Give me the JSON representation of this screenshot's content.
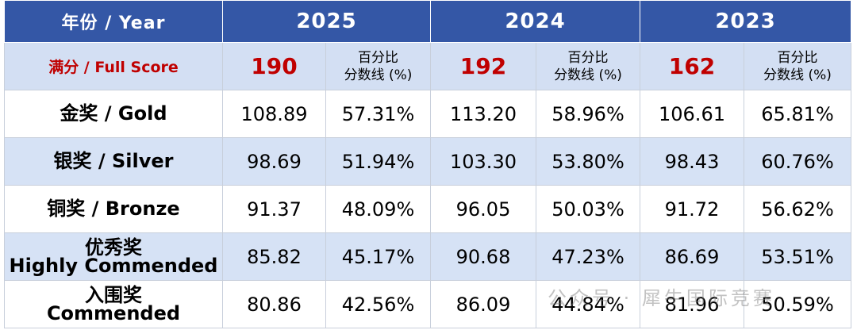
{
  "table": {
    "header": {
      "label": "年份 / Year",
      "years": [
        "2025",
        "2024",
        "2023"
      ]
    },
    "full_score": {
      "label": "满分 / Full Score",
      "scores": [
        "190",
        "192",
        "162"
      ],
      "pct_label": [
        "百分比",
        "分数线 (%)"
      ]
    },
    "rows": [
      {
        "label": [
          "金奖 / Gold"
        ],
        "cells": [
          "108.89",
          "57.31%",
          "113.20",
          "58.96%",
          "106.61",
          "65.81%"
        ]
      },
      {
        "label": [
          "银奖 / Silver"
        ],
        "cells": [
          "98.69",
          "51.94%",
          "103.30",
          "53.80%",
          "98.43",
          "60.76%"
        ]
      },
      {
        "label": [
          "铜奖 / Bronze"
        ],
        "cells": [
          "91.37",
          "48.09%",
          "96.05",
          "50.03%",
          "91.72",
          "56.62%"
        ]
      },
      {
        "label": [
          "优秀奖",
          "Highly Commended"
        ],
        "cells": [
          "85.82",
          "45.17%",
          "90.68",
          "47.23%",
          "86.69",
          "53.51%"
        ]
      },
      {
        "label": [
          "入围奖",
          "Commended"
        ],
        "cells": [
          "80.86",
          "42.56%",
          "86.09",
          "44.84%",
          "81.96",
          "50.59%"
        ]
      }
    ]
  },
  "watermark": "公众号 · 犀牛国际竞赛"
}
